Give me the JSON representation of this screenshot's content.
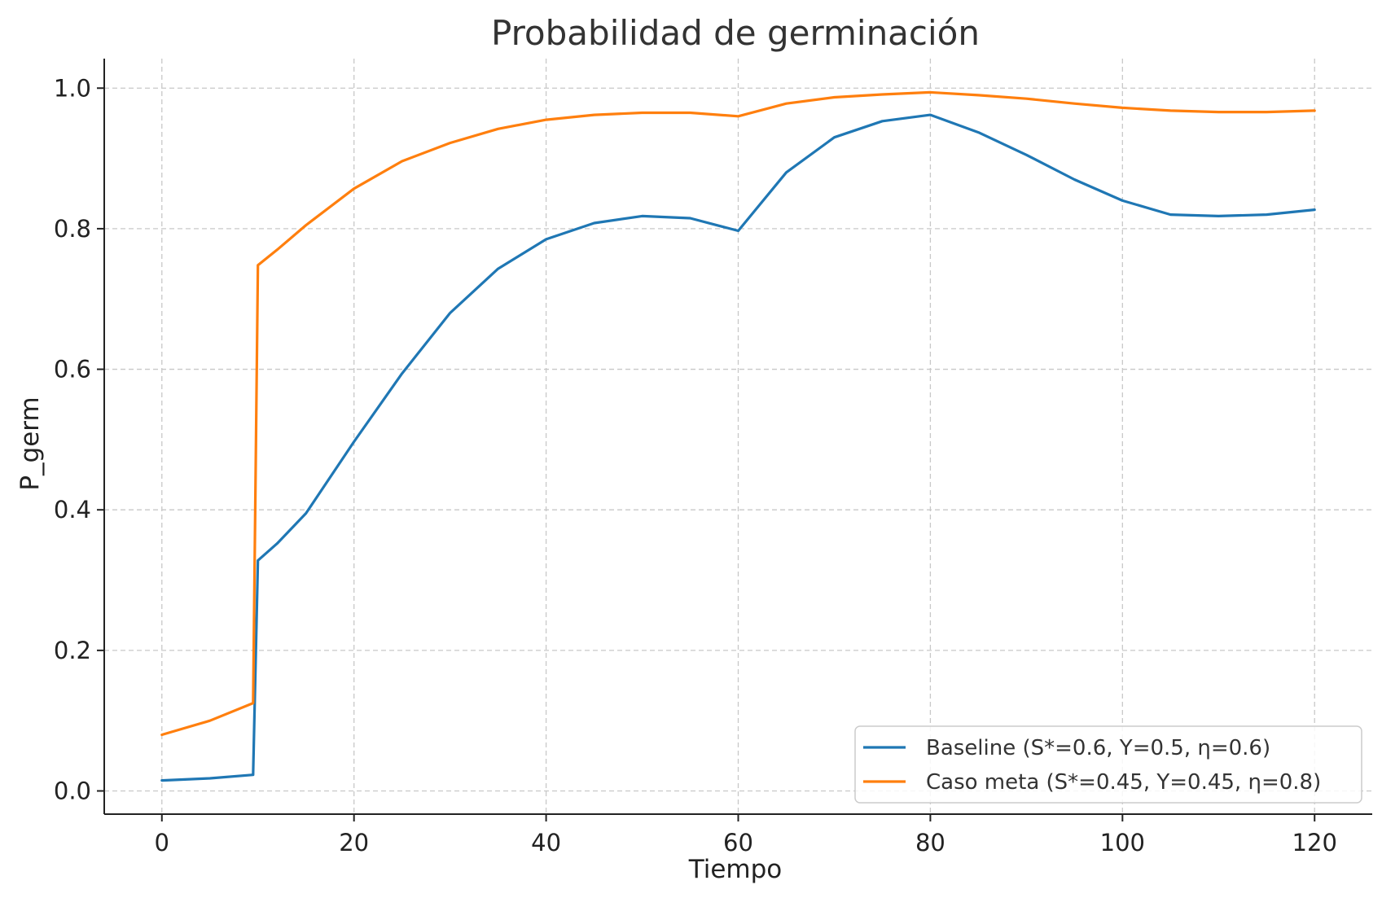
{
  "chart_data": {
    "type": "line",
    "title": "Probabilidad de germinación",
    "xlabel": "Tiempo",
    "ylabel": "P_germ",
    "xlim": [
      -6,
      126
    ],
    "ylim": [
      -0.033,
      1.042
    ],
    "xticks": [
      0,
      20,
      40,
      60,
      80,
      100,
      120
    ],
    "yticks": [
      0.0,
      0.2,
      0.4,
      0.6,
      0.8,
      1.0
    ],
    "xtick_labels": [
      "0",
      "20",
      "40",
      "60",
      "80",
      "100",
      "120"
    ],
    "ytick_labels": [
      "0.0",
      "0.2",
      "0.4",
      "0.6",
      "0.8",
      "1.0"
    ],
    "grid": true,
    "legend_position": "lower-right",
    "series": [
      {
        "name": "Baseline (S*=0.6, Y=0.5, η=0.6)",
        "color": "#1f77b4",
        "x": [
          0,
          5,
          9.5,
          10,
          12,
          15,
          20,
          25,
          30,
          35,
          40,
          45,
          50,
          55,
          60,
          65,
          70,
          75,
          80,
          85,
          90,
          95,
          100,
          105,
          110,
          115,
          120
        ],
        "y": [
          0.015,
          0.018,
          0.023,
          0.328,
          0.352,
          0.395,
          0.497,
          0.594,
          0.68,
          0.743,
          0.785,
          0.808,
          0.818,
          0.815,
          0.797,
          0.88,
          0.93,
          0.953,
          0.962,
          0.937,
          0.905,
          0.87,
          0.84,
          0.82,
          0.818,
          0.82,
          0.827
        ]
      },
      {
        "name": "Caso meta (S*=0.45, Y=0.45, η=0.8)",
        "color": "#ff7f0e",
        "x": [
          0,
          5,
          9.5,
          10,
          12,
          15,
          20,
          25,
          30,
          35,
          40,
          45,
          50,
          55,
          60,
          65,
          70,
          75,
          80,
          85,
          90,
          95,
          100,
          105,
          110,
          115,
          120
        ],
        "y": [
          0.08,
          0.1,
          0.125,
          0.748,
          0.77,
          0.805,
          0.857,
          0.896,
          0.922,
          0.942,
          0.955,
          0.962,
          0.965,
          0.965,
          0.96,
          0.978,
          0.987,
          0.991,
          0.994,
          0.99,
          0.985,
          0.978,
          0.972,
          0.968,
          0.966,
          0.966,
          0.968
        ]
      }
    ]
  }
}
